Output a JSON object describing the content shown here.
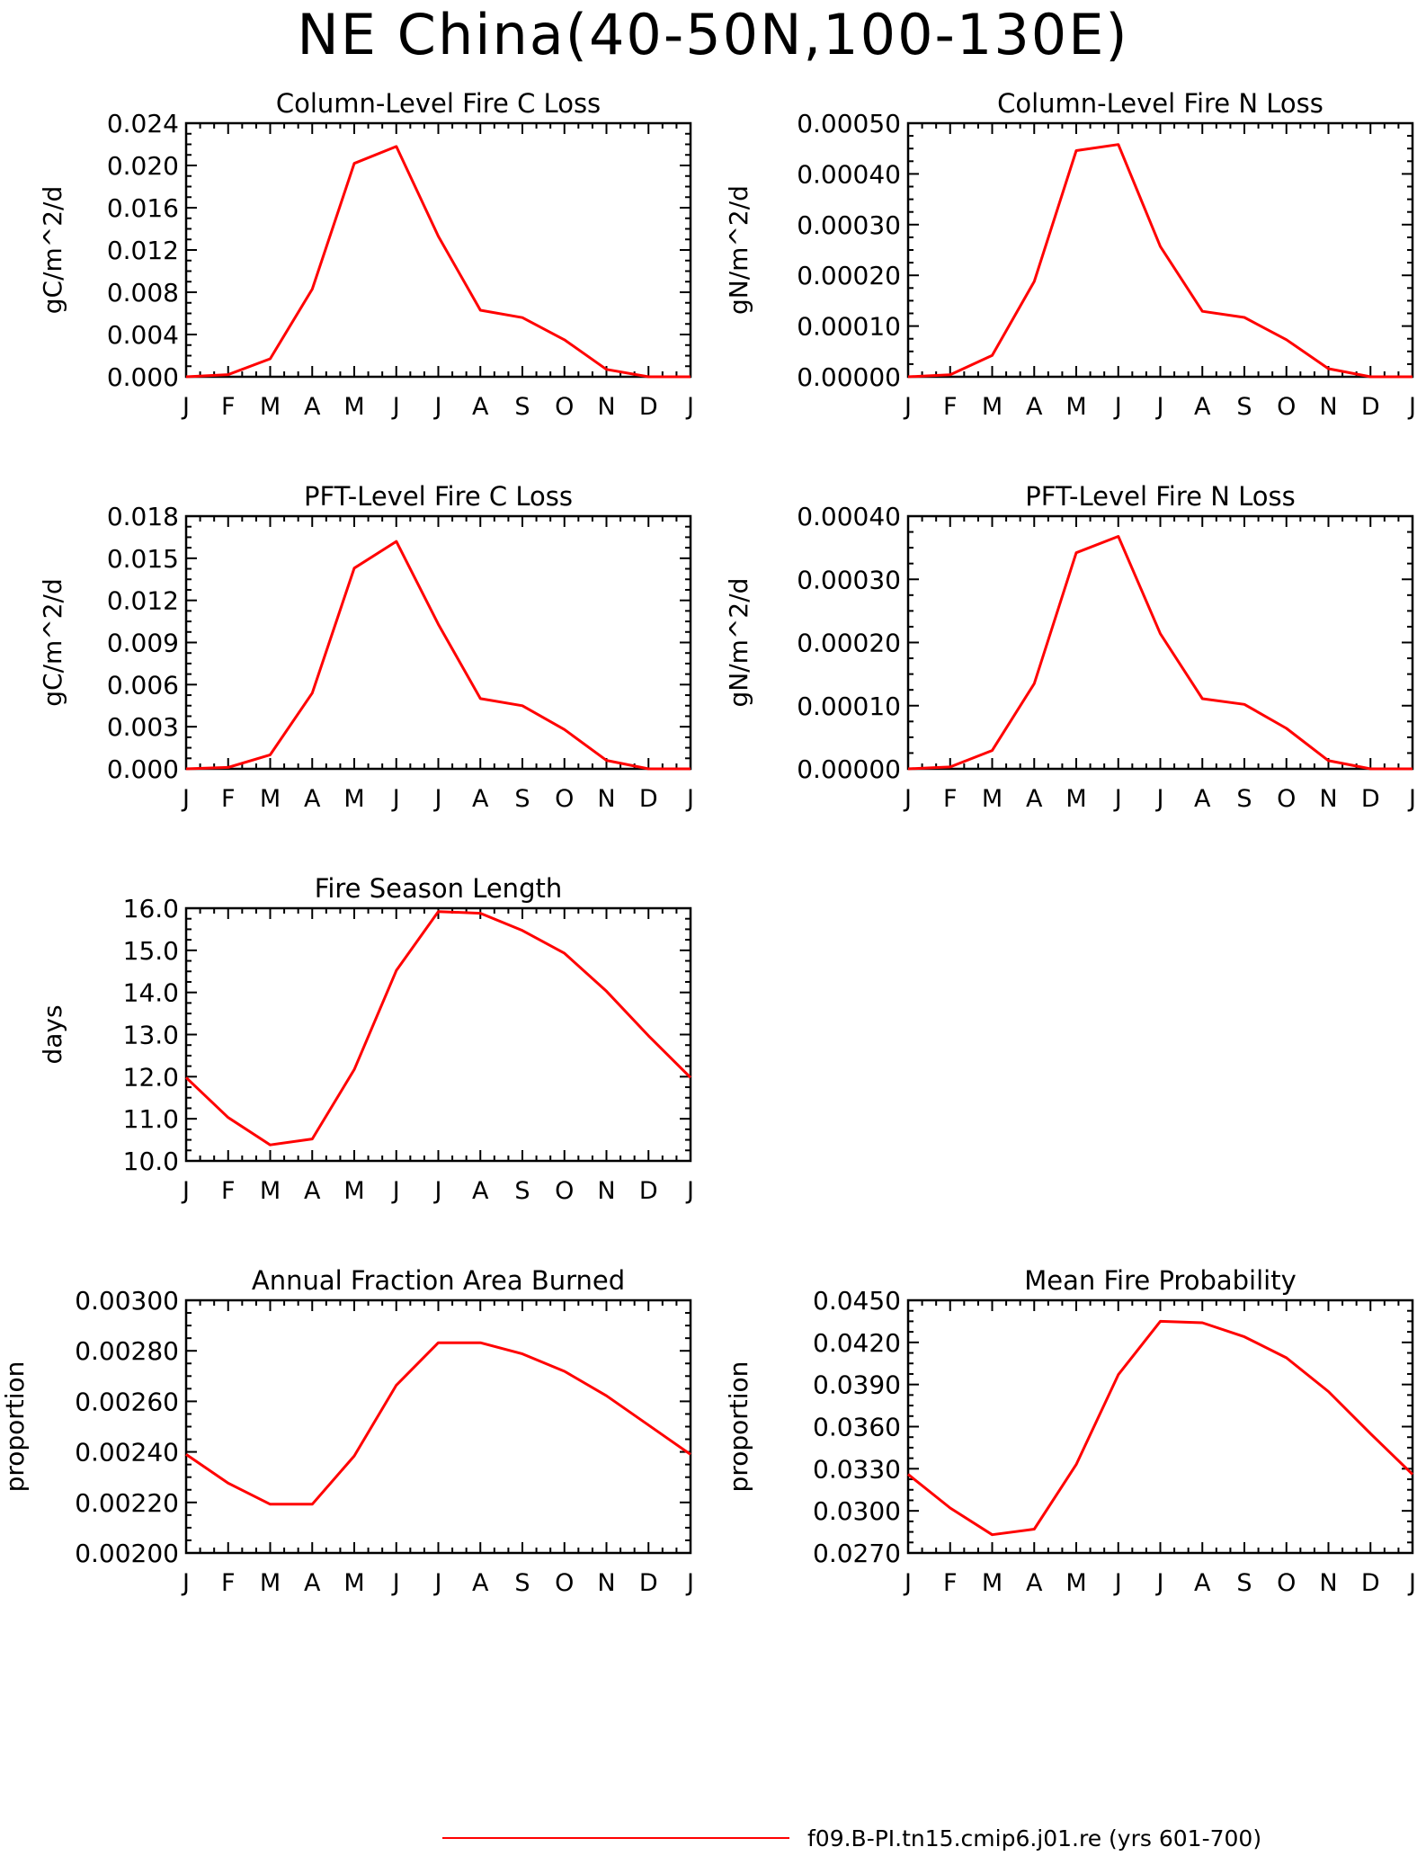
{
  "page_title": "NE China(40-50N,100-130E)",
  "legend": {
    "label": "f09.B-PI.tn15.cmip6.j01.re (yrs 601-700)",
    "color": "#ff0000"
  },
  "chart_data": [
    {
      "type": "line",
      "title": "Column-Level Fire C Loss",
      "ylabel": "gC/m^2/d",
      "ylim": [
        0,
        0.024
      ],
      "yticks": [
        "0.000",
        "0.004",
        "0.008",
        "0.012",
        "0.016",
        "0.020",
        "0.024"
      ],
      "x": [
        "J",
        "F",
        "M",
        "A",
        "M",
        "J",
        "J",
        "A",
        "S",
        "O",
        "N",
        "D",
        "J"
      ],
      "series": [
        {
          "values": [
            0.0,
            0.0002,
            0.0017,
            0.0083,
            0.0202,
            0.0218,
            0.0133,
            0.0063,
            0.0056,
            0.0035,
            0.0007,
            0.0,
            0.0
          ]
        }
      ]
    },
    {
      "type": "line",
      "title": "Column-Level Fire N Loss",
      "ylabel": "gN/m^2/d",
      "ylim": [
        0,
        0.0005
      ],
      "yticks": [
        "0.00000",
        "0.00010",
        "0.00020",
        "0.00030",
        "0.00040",
        "0.00050"
      ],
      "x": [
        "J",
        "F",
        "M",
        "A",
        "M",
        "J",
        "J",
        "A",
        "S",
        "O",
        "N",
        "D",
        "J"
      ],
      "series": [
        {
          "values": [
            0.0,
            4e-06,
            4.2e-05,
            0.000188,
            0.000446,
            0.000458,
            0.000257,
            0.000129,
            0.000117,
            7.3e-05,
            1.6e-05,
            0.0,
            0.0
          ]
        }
      ]
    },
    {
      "type": "line",
      "title": "PFT-Level Fire C Loss",
      "ylabel": "gC/m^2/d",
      "ylim": [
        0,
        0.018
      ],
      "yticks": [
        "0.000",
        "0.003",
        "0.006",
        "0.009",
        "0.012",
        "0.015",
        "0.018"
      ],
      "x": [
        "J",
        "F",
        "M",
        "A",
        "M",
        "J",
        "J",
        "A",
        "S",
        "O",
        "N",
        "D",
        "J"
      ],
      "series": [
        {
          "values": [
            0.0,
            0.0001,
            0.001,
            0.0054,
            0.0143,
            0.0162,
            0.0103,
            0.005,
            0.0045,
            0.0028,
            0.0006,
            0.0,
            0.0
          ]
        }
      ]
    },
    {
      "type": "line",
      "title": "PFT-Level Fire N Loss",
      "ylabel": "gN/m^2/d",
      "ylim": [
        0,
        0.0004
      ],
      "yticks": [
        "0.00000",
        "0.00010",
        "0.00020",
        "0.00030",
        "0.00040"
      ],
      "x": [
        "J",
        "F",
        "M",
        "A",
        "M",
        "J",
        "J",
        "A",
        "S",
        "O",
        "N",
        "D",
        "J"
      ],
      "series": [
        {
          "values": [
            0.0,
            3e-06,
            2.9e-05,
            0.000135,
            0.000342,
            0.000368,
            0.000214,
            0.000111,
            0.000102,
            6.4e-05,
            1.3e-05,
            0.0,
            0.0
          ]
        }
      ]
    },
    {
      "type": "line",
      "title": "Fire Season Length",
      "ylabel": "days",
      "ylim": [
        10,
        16
      ],
      "yticks": [
        "10.0",
        "11.0",
        "12.0",
        "13.0",
        "14.0",
        "15.0",
        "16.0"
      ],
      "x": [
        "J",
        "F",
        "M",
        "A",
        "M",
        "J",
        "J",
        "A",
        "S",
        "O",
        "N",
        "D",
        "J"
      ],
      "series": [
        {
          "values": [
            11.98,
            11.03,
            10.38,
            10.52,
            12.17,
            14.52,
            15.92,
            15.88,
            15.47,
            14.93,
            14.03,
            12.97,
            11.98
          ]
        }
      ]
    },
    {
      "type": "line",
      "title": "Annual Fraction Area Burned",
      "ylabel": "proportion",
      "ylim": [
        0.002,
        0.003
      ],
      "yticks": [
        "0.00200",
        "0.00220",
        "0.00240",
        "0.00260",
        "0.00280",
        "0.00300"
      ],
      "x": [
        "J",
        "F",
        "M",
        "A",
        "M",
        "J",
        "J",
        "A",
        "S",
        "O",
        "N",
        "D",
        "J"
      ],
      "series": [
        {
          "values": [
            0.00239,
            0.002276,
            0.002193,
            0.002193,
            0.002384,
            0.002664,
            0.002832,
            0.002832,
            0.002788,
            0.002719,
            0.002622,
            0.002506,
            0.00239
          ]
        }
      ]
    },
    {
      "type": "line",
      "title": "Mean Fire Probability",
      "ylabel": "proportion",
      "ylim": [
        0.027,
        0.045
      ],
      "yticks": [
        "0.0270",
        "0.0300",
        "0.0330",
        "0.0360",
        "0.0390",
        "0.0420",
        "0.0450"
      ],
      "x": [
        "J",
        "F",
        "M",
        "A",
        "M",
        "J",
        "J",
        "A",
        "S",
        "O",
        "N",
        "D",
        "J"
      ],
      "series": [
        {
          "values": [
            0.0326,
            0.0302,
            0.0283,
            0.0287,
            0.0333,
            0.0397,
            0.0435,
            0.0434,
            0.0424,
            0.0409,
            0.0385,
            0.0355,
            0.0326
          ]
        }
      ]
    }
  ]
}
